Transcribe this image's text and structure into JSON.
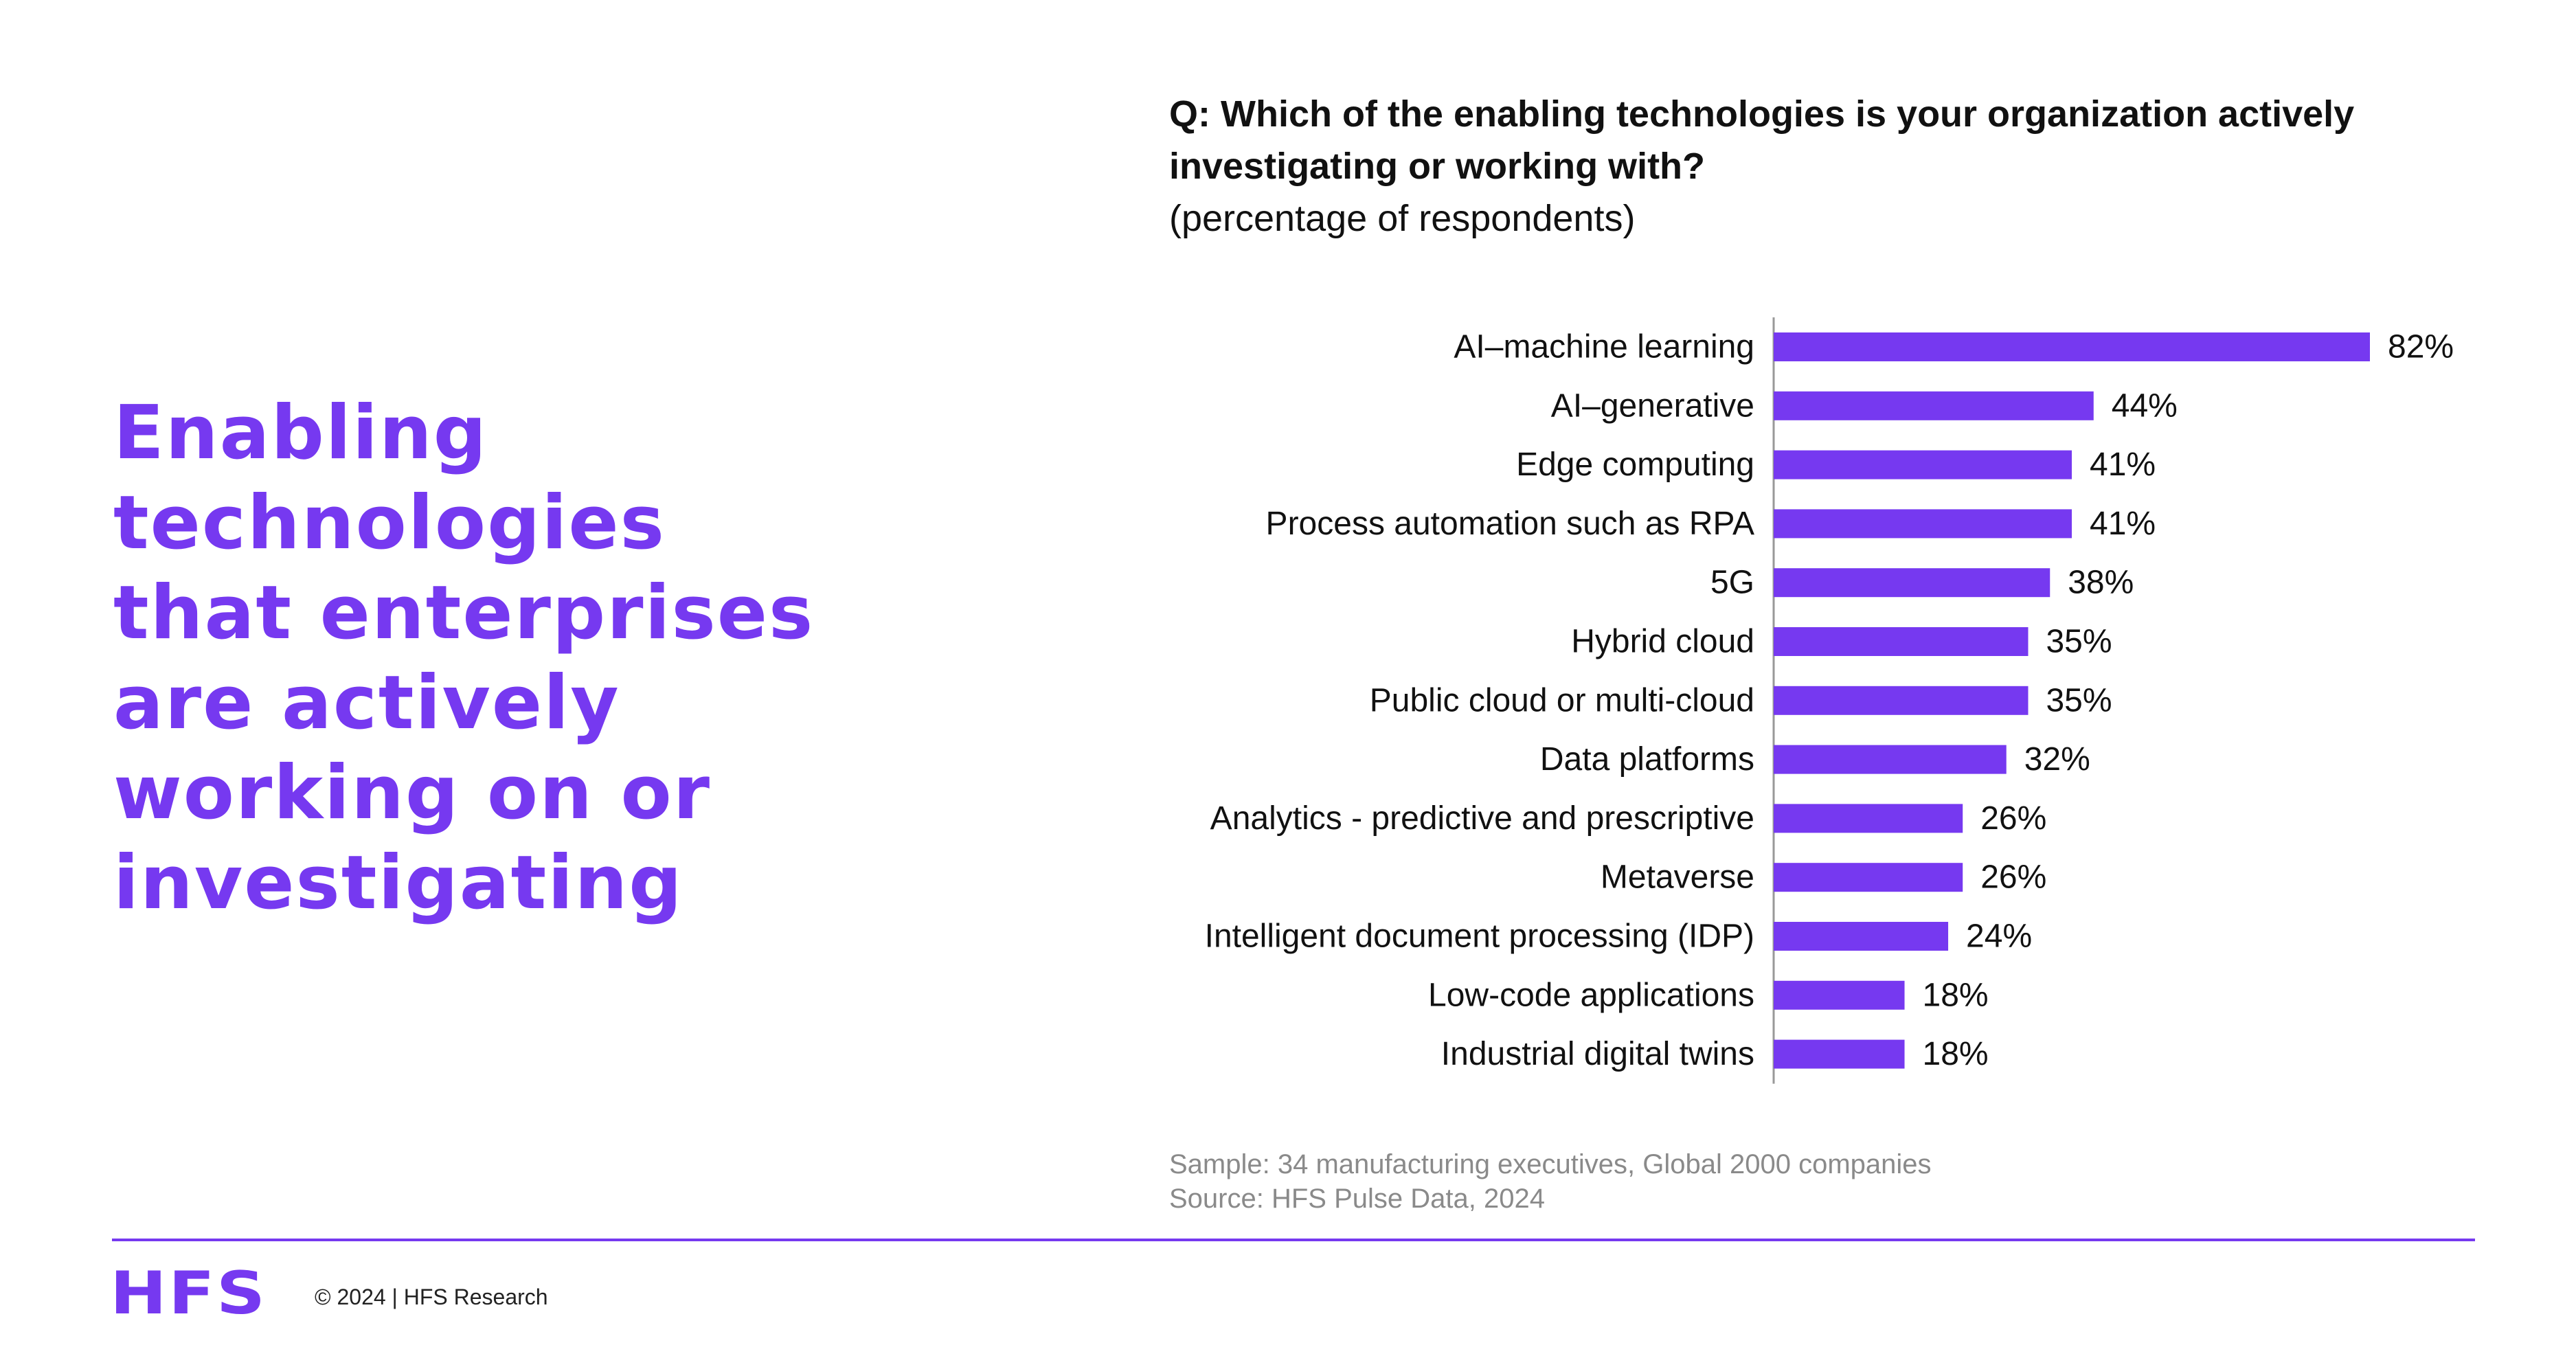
{
  "headline": {
    "lines": [
      "Enabling",
      "technologies",
      "that enterprises",
      "are actively",
      "working on or",
      "investigating"
    ]
  },
  "question": {
    "bold": "Q: Which of the enabling technologies is your organization actively investigating or working with?",
    "sub": "(percentage of respondents)"
  },
  "chart_data": {
    "type": "bar",
    "orientation": "horizontal",
    "title": "",
    "xlabel": "",
    "ylabel": "",
    "xlim": [
      0,
      82
    ],
    "grid": false,
    "legend": "none",
    "bar_color": "#7639f0",
    "value_suffix": "%",
    "categories": [
      "AI–machine learning",
      "AI–generative",
      "Edge computing",
      "Process automation such as RPA",
      "5G",
      "Hybrid cloud",
      "Public cloud or multi-cloud",
      "Data platforms",
      "Analytics - predictive and prescriptive",
      "Metaverse",
      "Intelligent document processing (IDP)",
      "Low-code applications",
      "Industrial digital twins"
    ],
    "values": [
      82,
      44,
      41,
      41,
      38,
      35,
      35,
      32,
      26,
      26,
      24,
      18,
      18
    ],
    "data_labels": [
      "82%",
      "44%",
      "41%",
      "41%",
      "38%",
      "35%",
      "35%",
      "32%",
      "26%",
      "26%",
      "24%",
      "18%",
      "18%"
    ]
  },
  "notes": {
    "sample": "Sample: 34 manufacturing executives, Global 2000 companies",
    "source": "Source: HFS Pulse Data, 2024"
  },
  "footer": {
    "logo": "HFS",
    "copyright": "© 2024 | HFS Research"
  },
  "colors": {
    "accent": "#7639f0",
    "text": "#111111",
    "muted": "#8a8a8a"
  }
}
